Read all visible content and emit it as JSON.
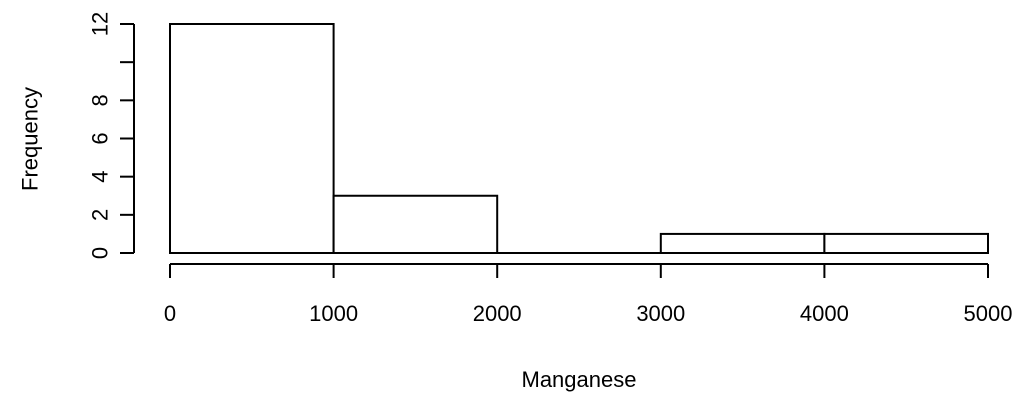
{
  "chart_data": {
    "type": "bar",
    "subtype": "histogram",
    "bins": [
      {
        "start": 0,
        "end": 1000,
        "count": 12
      },
      {
        "start": 1000,
        "end": 2000,
        "count": 3
      },
      {
        "start": 2000,
        "end": 3000,
        "count": 0
      },
      {
        "start": 3000,
        "end": 4000,
        "count": 1
      },
      {
        "start": 4000,
        "end": 5000,
        "count": 1
      }
    ],
    "xlabel": "Manganese",
    "ylabel": "Frequency",
    "x_ticks": [
      "0",
      "1000",
      "2000",
      "3000",
      "4000",
      "5000"
    ],
    "y_ticks": [
      "0",
      "2",
      "4",
      "6",
      "8",
      "12"
    ],
    "xlim": [
      0,
      5000
    ],
    "ylim": [
      0,
      12
    ],
    "grid": false,
    "bar_fill": "#ffffff",
    "bar_stroke": "#000000"
  }
}
